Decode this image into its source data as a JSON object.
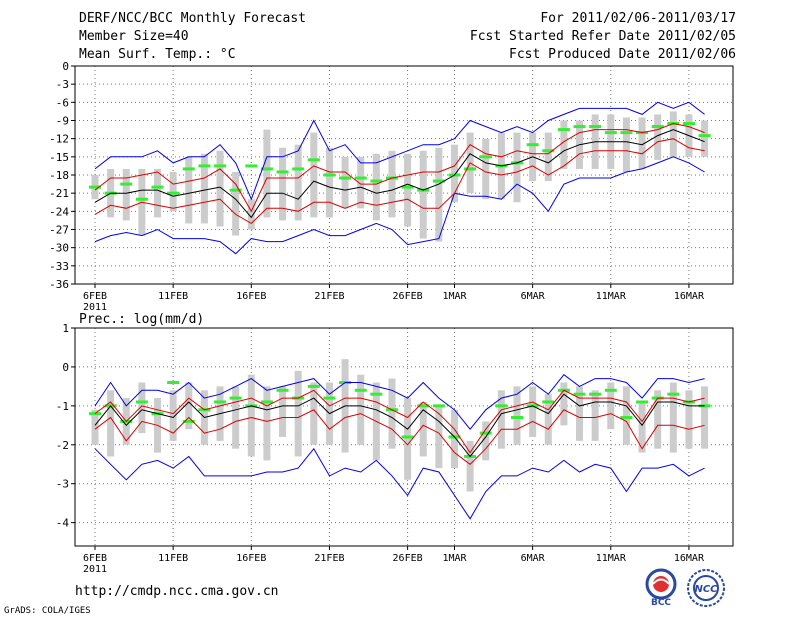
{
  "header": {
    "title": "DERF/NCC/BCC Monthly Forecast",
    "member_size": "Member Size=40",
    "period": "For 2011/02/06-2011/03/17",
    "started": "Fcst Started Refer Date 2011/02/05",
    "produced": "Fcst Produced Date 2011/02/06"
  },
  "footer": {
    "url": "http://cmdp.ncc.cma.gov.cn",
    "grads": "GrADS: COLA/IGES",
    "logo_bcc": "BCC",
    "logo_ncc": "NCC"
  },
  "colors": {
    "envelope": "#0000ee",
    "spread": "#dd0000",
    "mean": "#000000",
    "box": "#cccccc",
    "obs": "#33ee33"
  },
  "chart_data": [
    {
      "type": "line",
      "title": "Mean Surf. Temp.: °C",
      "ylim": [
        -36,
        0
      ],
      "yticks": [
        0,
        -3,
        -6,
        -9,
        -12,
        -15,
        -18,
        -21,
        -24,
        -27,
        -30,
        -33,
        -36
      ],
      "x_tick_labels": [
        {
          "day": 1,
          "label": "6FEB"
        },
        {
          "day": 6,
          "label": "11FEB"
        },
        {
          "day": 11,
          "label": "16FEB"
        },
        {
          "day": 16,
          "label": "21FEB"
        },
        {
          "day": 21,
          "label": "26FEB"
        },
        {
          "day": 24,
          "label": "1MAR"
        },
        {
          "day": 29,
          "label": "6MAR"
        },
        {
          "day": 34,
          "label": "11MAR"
        },
        {
          "day": 39,
          "label": "16MAR"
        }
      ],
      "year_label": "2011",
      "days": 40,
      "series": [
        {
          "name": "max",
          "values": [
            -17,
            -15,
            -15,
            -15,
            -14,
            -16,
            -15,
            -15,
            -13,
            -16,
            -22,
            -15,
            -15,
            -14,
            -9,
            -14,
            -13,
            -16,
            -16,
            -15,
            -14,
            -13,
            -13,
            -12,
            -9,
            -10,
            -11,
            -10,
            -11,
            -9,
            -8,
            -7,
            -7,
            -7,
            -7,
            -8,
            -6,
            -7,
            -6,
            -8
          ]
        },
        {
          "name": "upper",
          "values": [
            -20.5,
            -18.5,
            -18.5,
            -18,
            -17.5,
            -19.5,
            -19,
            -18.5,
            -17,
            -19.5,
            -24,
            -18.5,
            -18.5,
            -18.5,
            -16.5,
            -17.5,
            -17.5,
            -19.5,
            -19.5,
            -18.5,
            -18,
            -17.5,
            -17.5,
            -16.5,
            -13,
            -14.5,
            -15,
            -14,
            -14.5,
            -14.5,
            -12.5,
            -11,
            -10.5,
            -10.5,
            -10.5,
            -11,
            -10.5,
            -9.5,
            -10,
            -11
          ]
        },
        {
          "name": "mean",
          "values": [
            -22.5,
            -21,
            -21,
            -20.5,
            -20.5,
            -21.5,
            -21,
            -20.5,
            -20,
            -22,
            -25,
            -21,
            -21,
            -22,
            -19,
            -20,
            -20.5,
            -20,
            -21,
            -20.5,
            -19.5,
            -20.5,
            -19.5,
            -18,
            -14.5,
            -16,
            -16.5,
            -16,
            -15,
            -16,
            -14,
            -13,
            -12.5,
            -12.5,
            -12.5,
            -13,
            -11.5,
            -10.5,
            -11.5,
            -12.5
          ]
        },
        {
          "name": "lower",
          "values": [
            -24.5,
            -23,
            -23.5,
            -22.5,
            -23,
            -23.5,
            -23,
            -22.5,
            -22,
            -24.5,
            -26,
            -23.5,
            -23.5,
            -24,
            -22.5,
            -22.5,
            -23.5,
            -22.5,
            -23,
            -22.5,
            -22,
            -23.5,
            -23.5,
            -21,
            -16,
            -17.5,
            -18,
            -17.5,
            -16.5,
            -18,
            -16.5,
            -14.5,
            -14,
            -14,
            -14,
            -14.5,
            -12.5,
            -12,
            -13.5,
            -14
          ]
        },
        {
          "name": "min",
          "values": [
            -29,
            -28,
            -27.5,
            -28,
            -27,
            -28.5,
            -28.5,
            -28.5,
            -29,
            -31,
            -28.5,
            -29,
            -29,
            -28,
            -27,
            -28,
            -28,
            -27,
            -26,
            -27,
            -29.5,
            -29,
            -28.5,
            -21,
            -21.5,
            -21.5,
            -22,
            -19.5,
            -21,
            -24,
            -19.5,
            -18.5,
            -18.5,
            -18.5,
            -17.5,
            -17,
            -16,
            -15,
            -16,
            -17.5
          ]
        },
        {
          "name": "box_high",
          "values": [
            -18,
            -17,
            -17,
            -17,
            -17,
            -17.5,
            -15,
            -14.5,
            -14,
            -17.5,
            -22,
            -10.5,
            -13.5,
            -13,
            -11,
            -13.5,
            -15,
            -15,
            -14.5,
            -14,
            -14.5,
            -14,
            -13.5,
            -13,
            -11,
            -12,
            -11,
            -11,
            -11,
            -11,
            -9,
            -9,
            -8,
            -8,
            -8.5,
            -8.5,
            -8,
            -7.5,
            -8,
            -9
          ]
        },
        {
          "name": "box_low",
          "values": [
            -22,
            -25,
            -25.5,
            -28,
            -25,
            -24,
            -26,
            -26,
            -26.5,
            -28,
            -27,
            -25,
            -25.5,
            -25.5,
            -25,
            -25,
            -23.5,
            -23.5,
            -25.5,
            -25,
            -26.5,
            -28.5,
            -29,
            -22.5,
            -21,
            -22,
            -22,
            -22.5,
            -19,
            -19,
            -17,
            -17,
            -17,
            -17,
            -17.5,
            -17,
            -15.5,
            -15,
            -15,
            -15
          ]
        },
        {
          "name": "obs",
          "values": [
            -20,
            -21,
            -19.5,
            -22,
            -20,
            -21,
            -17,
            -16.5,
            -16.5,
            -20.5,
            -16.5,
            -17,
            -17.5,
            -17,
            -15.5,
            -18,
            -18.5,
            -18.5,
            -19,
            -18.5,
            -20,
            -20.5,
            -19,
            -18,
            -17,
            -15,
            -16.5,
            -16,
            -13,
            -14,
            -10.5,
            -10,
            -10,
            -11,
            -11,
            -11,
            -10,
            -9.5,
            -9.5,
            -11.5
          ]
        }
      ]
    },
    {
      "type": "line",
      "title": "Prec.: log(mm/d)",
      "ylim": [
        -4.6,
        1
      ],
      "yticks": [
        1,
        0,
        -1,
        -2,
        -3,
        -4
      ],
      "x_tick_labels": [
        {
          "day": 1,
          "label": "6FEB"
        },
        {
          "day": 6,
          "label": "11FEB"
        },
        {
          "day": 11,
          "label": "16FEB"
        },
        {
          "day": 16,
          "label": "21FEB"
        },
        {
          "day": 21,
          "label": "26FEB"
        },
        {
          "day": 24,
          "label": "1MAR"
        },
        {
          "day": 29,
          "label": "6MAR"
        },
        {
          "day": 34,
          "label": "11MAR"
        },
        {
          "day": 39,
          "label": "16MAR"
        }
      ],
      "year_label": "2011",
      "days": 40,
      "series": [
        {
          "name": "max",
          "values": [
            -1,
            -0.4,
            -1,
            -0.6,
            -0.6,
            -0.7,
            -0.4,
            -0.8,
            -0.7,
            -0.5,
            -0.3,
            -0.6,
            -0.5,
            -0.4,
            -0.3,
            -0.7,
            -0.4,
            -0.4,
            -0.5,
            -0.6,
            -0.8,
            -0.4,
            -0.8,
            -1.1,
            -1.6,
            -1.1,
            -0.8,
            -0.7,
            -0.4,
            -0.7,
            -0.2,
            -0.5,
            -0.3,
            -0.3,
            -0.4,
            -0.8,
            -0.3,
            -0.3,
            -0.4,
            -0.3
          ]
        },
        {
          "name": "upper",
          "values": [
            -1.2,
            -0.9,
            -1.4,
            -1,
            -1.1,
            -1.2,
            -0.8,
            -1.1,
            -1,
            -0.9,
            -0.8,
            -1,
            -0.8,
            -0.8,
            -0.6,
            -1,
            -0.8,
            -0.8,
            -0.9,
            -1.1,
            -1.3,
            -0.9,
            -1.2,
            -1.6,
            -2.2,
            -1.6,
            -1.1,
            -1,
            -0.9,
            -1.1,
            -0.6,
            -0.8,
            -0.8,
            -0.8,
            -0.9,
            -1.4,
            -0.8,
            -0.8,
            -0.9,
            -0.8
          ]
        },
        {
          "name": "mean",
          "values": [
            -1.5,
            -1,
            -1.5,
            -1.1,
            -1.2,
            -1.3,
            -0.9,
            -1.3,
            -1.2,
            -1.1,
            -1,
            -1.1,
            -1,
            -1,
            -0.8,
            -1.2,
            -1,
            -1,
            -1.1,
            -1.3,
            -1.6,
            -1.1,
            -1.4,
            -1.8,
            -2.3,
            -1.8,
            -1.2,
            -1.1,
            -1,
            -1.2,
            -0.7,
            -1,
            -0.9,
            -0.9,
            -1,
            -1.5,
            -0.9,
            -0.9,
            -1,
            -1
          ]
        },
        {
          "name": "lower",
          "values": [
            -1.6,
            -1.3,
            -1.9,
            -1.4,
            -1.5,
            -1.7,
            -1.3,
            -1.7,
            -1.6,
            -1.4,
            -1.3,
            -1.4,
            -1.3,
            -1.3,
            -1.1,
            -1.6,
            -1.3,
            -1.2,
            -1.4,
            -1.6,
            -2,
            -1.5,
            -1.7,
            -2.2,
            -2.5,
            -2.1,
            -1.6,
            -1.6,
            -1.4,
            -1.6,
            -1.1,
            -1.3,
            -1.3,
            -1.2,
            -1.4,
            -2.1,
            -1.5,
            -1.5,
            -1.6,
            -1.5
          ]
        },
        {
          "name": "min",
          "values": [
            -2.1,
            -2.5,
            -2.9,
            -2.5,
            -2.4,
            -2.6,
            -2.3,
            -2.8,
            -2.8,
            -2.8,
            -2.8,
            -2.7,
            -2.7,
            -2.6,
            -2.1,
            -2.8,
            -2.6,
            -2.7,
            -2.4,
            -2.8,
            -3.3,
            -2.6,
            -2.7,
            -3.3,
            -3.9,
            -3.2,
            -2.8,
            -2.8,
            -2.6,
            -2.7,
            -2.4,
            -2.7,
            -2.5,
            -2.6,
            -3.2,
            -2.6,
            -2.6,
            -2.5,
            -2.8,
            -2.6
          ]
        },
        {
          "name": "box_high",
          "values": [
            -1.1,
            -0.6,
            -0.8,
            -0.4,
            -0.8,
            -0.6,
            -0.4,
            -0.6,
            -0.5,
            -0.5,
            -0.2,
            -0.5,
            -0.5,
            -0.1,
            -0.4,
            -0.4,
            0.2,
            -0.2,
            -0.4,
            -0.3,
            -0.8,
            -0.9,
            -1,
            -1.1,
            -1.9,
            -1.4,
            -0.6,
            -0.5,
            -0.5,
            -0.7,
            -0.4,
            -0.5,
            -0.6,
            -0.4,
            -0.5,
            -0.9,
            -0.6,
            -0.4,
            -0.6,
            -0.5
          ]
        },
        {
          "name": "box_low",
          "values": [
            -2,
            -2.3,
            -2,
            -1.7,
            -2.2,
            -1.9,
            -1.6,
            -2,
            -1.9,
            -2.1,
            -2.3,
            -2.4,
            -1.8,
            -2.3,
            -2,
            -2,
            -2.2,
            -2,
            -2.4,
            -2.1,
            -2.9,
            -2.3,
            -2.6,
            -2.6,
            -3.2,
            -2.4,
            -2.1,
            -2,
            -1.8,
            -2,
            -1.5,
            -1.9,
            -1.9,
            -1.6,
            -2,
            -2.2,
            -2.1,
            -2.2,
            -2.1,
            -2.1
          ]
        },
        {
          "name": "obs",
          "values": [
            -1.2,
            -1,
            -1.4,
            -0.9,
            -1.2,
            -0.4,
            -1.4,
            -1.1,
            -0.9,
            -0.8,
            -1,
            -0.9,
            -0.6,
            -0.8,
            -0.5,
            -0.8,
            -0.4,
            -0.6,
            -0.7,
            -1.1,
            -1.8,
            -1,
            -1,
            -1.8,
            -2.3,
            -1.7,
            -1,
            -1.3,
            -1,
            -0.9,
            -0.6,
            -0.7,
            -0.7,
            -0.6,
            -1.3,
            -0.9,
            -0.8,
            -0.7,
            -0.9,
            -1
          ]
        }
      ]
    }
  ]
}
